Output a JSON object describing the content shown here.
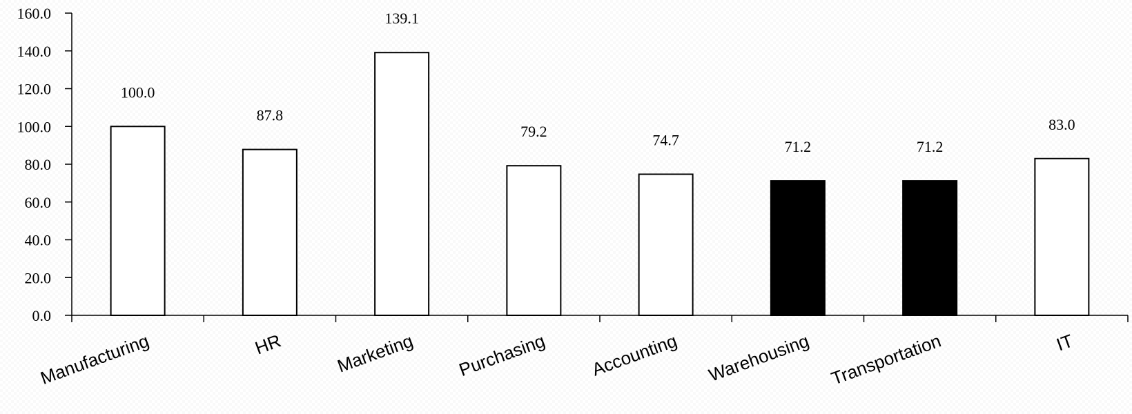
{
  "chart_data": {
    "type": "bar",
    "categories": [
      "Manufacturing",
      "HR",
      "Marketing",
      "Purchasing",
      "Accounting",
      "Warehousing",
      "Transportation",
      "IT"
    ],
    "values": [
      100.0,
      87.8,
      139.1,
      79.2,
      74.7,
      71.2,
      71.2,
      83.0
    ],
    "data_labels": [
      "100.0",
      "87.8",
      "139.1",
      "79.2",
      "74.7",
      "71.2",
      "71.2",
      "83.0"
    ],
    "bar_fill": [
      "#ffffff",
      "#ffffff",
      "#ffffff",
      "#ffffff",
      "#ffffff",
      "#000000",
      "#000000",
      "#ffffff"
    ],
    "bar_stroke": "#000000",
    "ylim": [
      0,
      160
    ],
    "yticks": [
      0,
      20,
      40,
      60,
      80,
      100,
      120,
      140,
      160
    ],
    "ytick_labels": [
      "0.0",
      "20.0",
      "40.0",
      "60.0",
      "80.0",
      "100.0",
      "120.0",
      "140.0",
      "160.0"
    ],
    "title": "",
    "xlabel": "",
    "ylabel": "",
    "grid": false,
    "legend": "none"
  }
}
